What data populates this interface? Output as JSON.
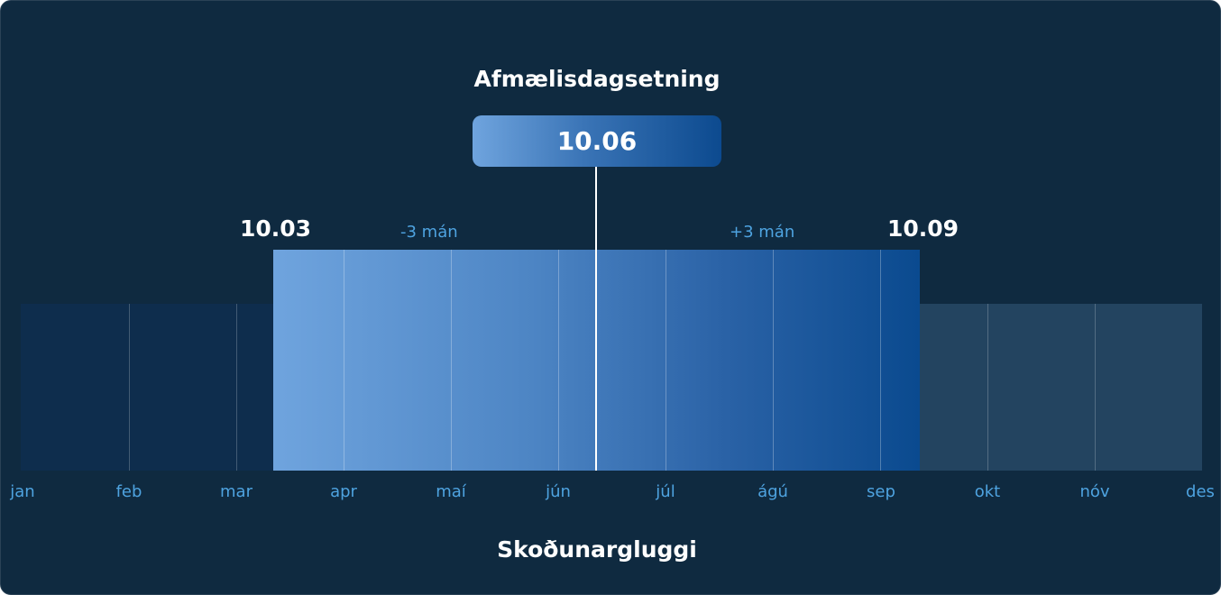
{
  "headings": {
    "birthday_title": "Afmælisdagsetning",
    "viewing_window_title": "Skoðunargluggi"
  },
  "birthday": {
    "date": "10.06"
  },
  "window": {
    "start_date": "10.03",
    "end_date": "10.09",
    "minus_label": "-3 mán",
    "plus_label": "+3 mán"
  },
  "months": [
    "jan",
    "feb",
    "mar",
    "apr",
    "maí",
    "jún",
    "júl",
    "ágú",
    "sep",
    "okt",
    "nóv",
    "des"
  ],
  "colors": {
    "background": "#0f2a40",
    "accent_light": "#6fa4de",
    "accent_dark": "#0c4a8f",
    "month_text": "#4ea3e0",
    "outside_left": "#0e2d4d",
    "outside_right": "#234460"
  }
}
